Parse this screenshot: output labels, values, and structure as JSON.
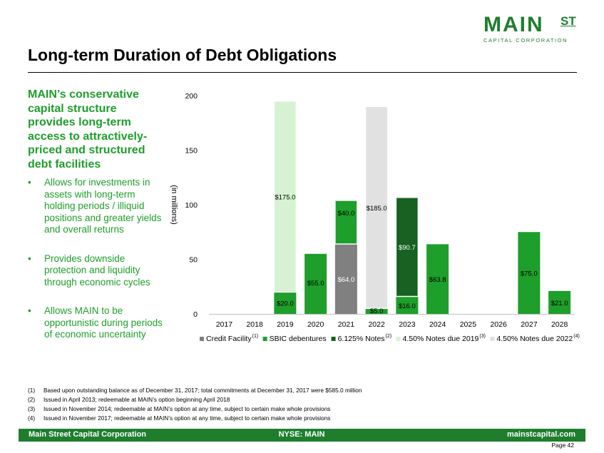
{
  "logo": {
    "main": "MAIN",
    "st": "ST",
    "sub": "CAPITAL CORPORATION"
  },
  "slide": {
    "title": "Long-term Duration of Debt Obligations",
    "headline": "MAIN’s conservative capital structure provides long-term access to attractively-priced and structured debt facilities",
    "bullets": [
      "Allows for investments in assets with long-term holding periods / illiquid positions and greater yields and overall returns",
      "Provides downside protection and liquidity through economic cycles",
      "Allows MAIN to be opportunistic during periods of economic uncertainty"
    ]
  },
  "chart_data": {
    "type": "bar",
    "stacked": true,
    "ylabel": "(in millions)",
    "ylim": [
      0,
      200
    ],
    "yticks": [
      0,
      50,
      100,
      150,
      200
    ],
    "categories": [
      "2017",
      "2018",
      "2019",
      "2020",
      "2021",
      "2022",
      "2023",
      "2024",
      "2025",
      "2026",
      "2027",
      "2028"
    ],
    "series": [
      {
        "name": "Credit Facility",
        "note": "(1)",
        "color": "#808080",
        "values": [
          0,
          0,
          0,
          0,
          64,
          0,
          0,
          0,
          0,
          0,
          0,
          0
        ]
      },
      {
        "name": "SBIC debentures",
        "note": "",
        "color": "#1e9e2a",
        "values": [
          0,
          0,
          20,
          55,
          40,
          5,
          16,
          63.8,
          0,
          0,
          75,
          21
        ]
      },
      {
        "name": "6.125% Notes",
        "note": "(2)",
        "color": "#176122",
        "values": [
          0,
          0,
          0,
          0,
          0,
          0,
          90.7,
          0,
          0,
          0,
          0,
          0
        ]
      },
      {
        "name": "4.50% Notes due 2019",
        "note": "(3)",
        "color": "#d7f2d3",
        "values": [
          0,
          0,
          175,
          0,
          0,
          0,
          0,
          0,
          0,
          0,
          0,
          0
        ]
      },
      {
        "name": "4.50% Notes due 2022",
        "note": "(4)",
        "color": "#e1e1e1",
        "values": [
          0,
          0,
          0,
          0,
          0,
          185,
          0,
          0,
          0,
          0,
          0,
          0
        ]
      }
    ],
    "data_labels": [
      {
        "category": "2019",
        "series": 1,
        "text": "$20.0"
      },
      {
        "category": "2019",
        "series": 3,
        "text": "$175.0"
      },
      {
        "category": "2020",
        "series": 1,
        "text": "$55.0"
      },
      {
        "category": "2021",
        "series": 0,
        "text": "$64.0"
      },
      {
        "category": "2021",
        "series": 1,
        "text": "$40.0"
      },
      {
        "category": "2022",
        "series": 1,
        "text": "$5.0"
      },
      {
        "category": "2022",
        "series": 4,
        "text": "$185.0"
      },
      {
        "category": "2023",
        "series": 1,
        "text": "$16.0"
      },
      {
        "category": "2023",
        "series": 2,
        "text": "$90.7"
      },
      {
        "category": "2024",
        "series": 1,
        "text": "$63.8"
      },
      {
        "category": "2027",
        "series": 1,
        "text": "$75.0"
      },
      {
        "category": "2028",
        "series": 1,
        "text": "$21.0"
      }
    ],
    "legend_position": "bottom",
    "grid": false
  },
  "footnotes": [
    {
      "num": "(1)",
      "text": "Based upon outstanding balance as of December 31, 2017; total commitments at December 31, 2017 were $585.0 million"
    },
    {
      "num": "(2)",
      "text": "Issued in April 2013; redeemable at MAIN’s option beginning April 2018"
    },
    {
      "num": "(3)",
      "text": "Issued in November 2014; redeemable at MAIN’s option at any time, subject to certain make whole provisions"
    },
    {
      "num": "(4)",
      "text": "Issued in November 2017; redeemable at MAIN’s option at any time, subject to certain make whole provisions"
    }
  ],
  "footer": {
    "left": "Main Street Capital Corporation",
    "center": "NYSE: MAIN",
    "right": "mainstcapital.com"
  },
  "page": "Page 42"
}
